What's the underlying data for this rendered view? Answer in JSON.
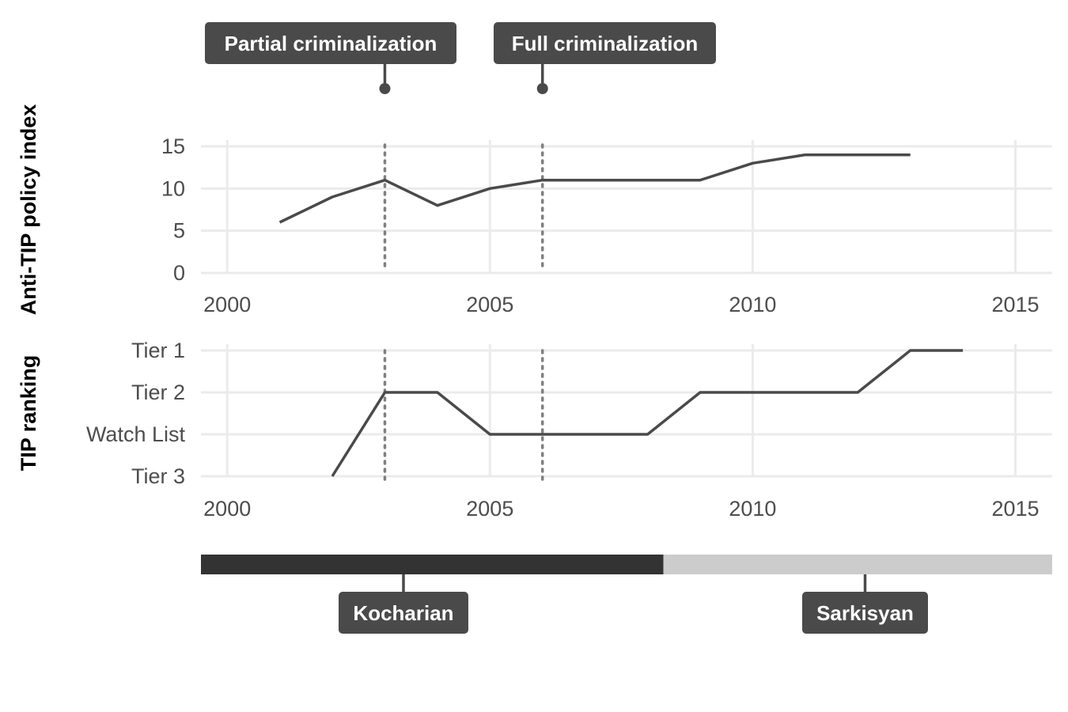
{
  "chart_data": [
    {
      "type": "line",
      "ylabel": "Anti-TIP policy index",
      "xlim": [
        1999.5,
        2015.7
      ],
      "ylim": [
        0,
        15
      ],
      "y_ticks": [
        "0",
        "5",
        "10",
        "15"
      ],
      "x_ticks": [
        "2000",
        "2005",
        "2010",
        "2015"
      ],
      "grid": true,
      "series": [
        {
          "x": [
            2001,
            2002,
            2003,
            2004,
            2005,
            2006,
            2007,
            2008,
            2009,
            2010,
            2011,
            2012,
            2013
          ],
          "values": [
            6,
            9,
            11,
            8,
            10,
            11,
            11,
            11,
            11,
            13,
            14,
            14,
            14
          ]
        }
      ]
    },
    {
      "type": "line",
      "ylabel": "TIP ranking",
      "xlim": [
        1999.5,
        2015.7
      ],
      "y_categories": [
        "Tier 3",
        "Watch List",
        "Tier 2",
        "Tier 1"
      ],
      "x_ticks": [
        "2000",
        "2005",
        "2010",
        "2015"
      ],
      "grid": true,
      "series": [
        {
          "x": [
            2002,
            2003,
            2004,
            2005,
            2006,
            2007,
            2008,
            2009,
            2010,
            2011,
            2012,
            2013,
            2014
          ],
          "values": [
            "Tier 3",
            "Tier 2",
            "Tier 2",
            "Watch List",
            "Watch List",
            "Watch List",
            "Watch List",
            "Tier 2",
            "Tier 2",
            "Tier 2",
            "Tier 2",
            "Tier 1",
            "Tier 1"
          ]
        }
      ]
    }
  ],
  "events": [
    {
      "label": "Partial criminalization",
      "year": 2003
    },
    {
      "label": "Full criminalization",
      "year": 2006
    }
  ],
  "presidents": [
    {
      "label": "Kocharian",
      "start": 1998.3,
      "end": 2008.3,
      "color": "#333333"
    },
    {
      "label": "Sarkisyan",
      "start": 2008.3,
      "end": 2018.3,
      "color": "#cccccc"
    }
  ]
}
